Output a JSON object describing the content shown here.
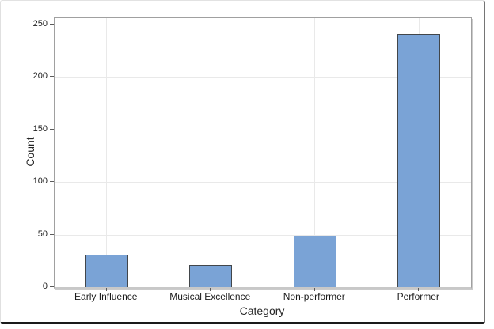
{
  "window": {
    "background": "#ffffff",
    "frame_top_color": "#e2e2e2",
    "frame_right_color": "#757575",
    "frame_bottom_color": "#1a1a1a"
  },
  "chart_data": {
    "type": "bar",
    "categories": [
      "Early Influence",
      "Musical Excellence",
      "Non-performer",
      "Performer"
    ],
    "values": [
      31,
      21,
      49,
      241
    ],
    "xlabel": "Category",
    "ylabel": "Count",
    "ylim": [
      0,
      256
    ],
    "yticks": [
      0,
      50,
      100,
      150,
      200,
      250
    ],
    "grid": true,
    "legend_position": "none",
    "bar_color": "#7AA3D6",
    "bar_border_color": "#42464A",
    "gridline_color": "#e9e9e9",
    "plot_border_color": "#a0a0a0",
    "axis_line_color": "#c8c8c8",
    "tick_color": "#5a5a5a",
    "text_color": "#1c1c1c"
  }
}
